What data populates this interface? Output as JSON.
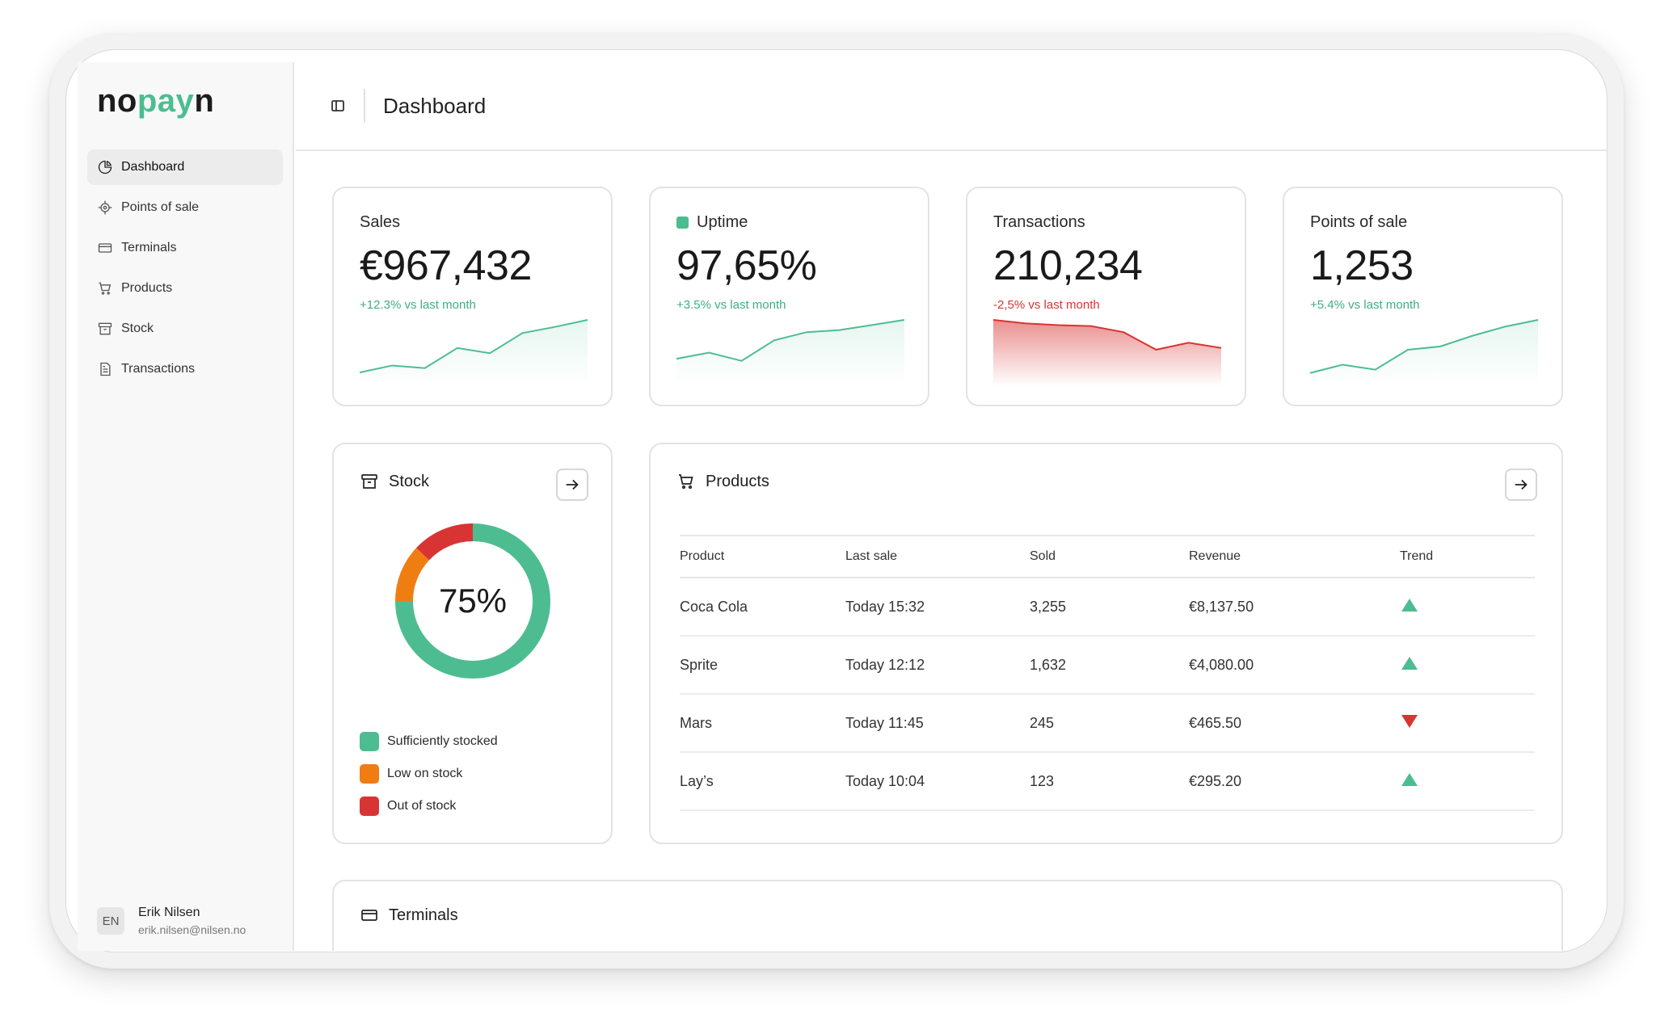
{
  "brand": {
    "prefix": "no",
    "accent": "pay",
    "suffix": "n",
    "accent_color": "#4dbd91"
  },
  "sidebar": {
    "items": [
      {
        "label": "Dashboard",
        "icon": "pie-chart-icon",
        "active": true
      },
      {
        "label": "Points of sale",
        "icon": "crosshair-icon"
      },
      {
        "label": "Terminals",
        "icon": "credit-card-icon"
      },
      {
        "label": "Products",
        "icon": "cart-icon"
      },
      {
        "label": "Stock",
        "icon": "archive-box-icon"
      },
      {
        "label": "Transactions",
        "icon": "document-icon"
      }
    ]
  },
  "user": {
    "initials": "EN",
    "name": "Erik Nilsen",
    "email": "erik.nilsen@nilsen.no"
  },
  "header": {
    "title": "Dashboard"
  },
  "kpis": [
    {
      "label": "Sales",
      "value": "€967,432",
      "change": "+12.3% vs last month",
      "trend": "positive",
      "series": [
        10,
        18,
        15,
        38,
        32,
        55,
        62,
        70
      ]
    },
    {
      "label": "Uptime",
      "value": "97,65%",
      "change": "+3.5% vs last month",
      "trend": "positive",
      "series": [
        22,
        28,
        20,
        40,
        48,
        50,
        55,
        60
      ]
    },
    {
      "label": "Transactions",
      "value": "210,234",
      "change": "-2,5% vs last month",
      "trend": "negative",
      "series": [
        70,
        66,
        64,
        63,
        56,
        36,
        44,
        38
      ]
    },
    {
      "label": "Points of sale",
      "value": "1,253",
      "change": "+5.4% vs last month",
      "trend": "positive",
      "series": [
        10,
        20,
        14,
        38,
        42,
        55,
        66,
        74
      ]
    }
  ],
  "stock": {
    "title": "Stock",
    "percent_label": "75%",
    "segments": [
      {
        "label": "Sufficiently stocked",
        "value": 75,
        "color": "#4dbd91"
      },
      {
        "label": "Low on stock",
        "value": 12,
        "color": "#f07d12"
      },
      {
        "label": "Out of stock",
        "value": 13,
        "color": "#d93434"
      }
    ]
  },
  "products": {
    "title": "Products",
    "columns": [
      "Product",
      "Last sale",
      "Sold",
      "Revenue",
      "Trend"
    ],
    "rows": [
      {
        "product": "Coca Cola",
        "last_sale": "Today 15:32",
        "sold": "3,255",
        "revenue": "€8,137.50",
        "trend": "up"
      },
      {
        "product": "Sprite",
        "last_sale": "Today 12:12",
        "sold": "1,632",
        "revenue": "€4,080.00",
        "trend": "up"
      },
      {
        "product": "Mars",
        "last_sale": "Today 11:45",
        "sold": "245",
        "revenue": "€465.50",
        "trend": "down"
      },
      {
        "product": "Lay’s",
        "last_sale": "Today 10:04",
        "sold": "123",
        "revenue": "€295.20",
        "trend": "up"
      }
    ]
  },
  "terminals": {
    "title": "Terminals"
  },
  "colors": {
    "positive": "#4dbd91",
    "negative": "#d93434",
    "warning": "#f07d12"
  }
}
